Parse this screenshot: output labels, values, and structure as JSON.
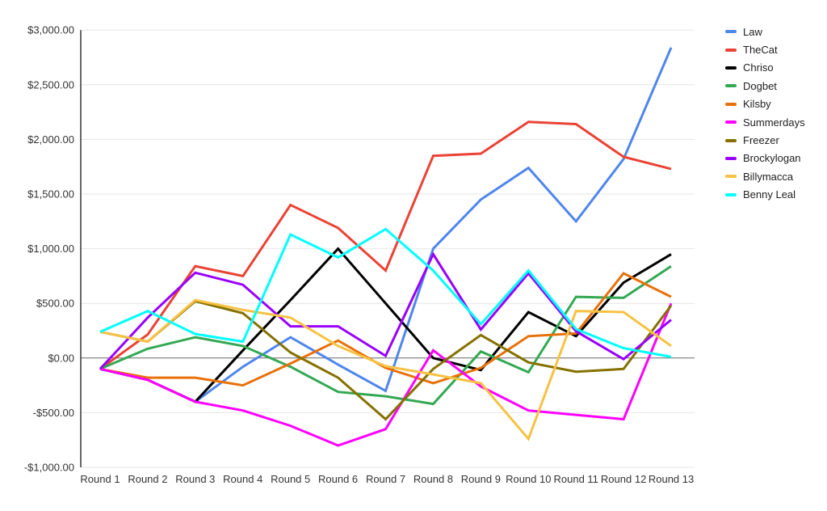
{
  "chart_data": {
    "type": "line",
    "title": "",
    "xlabel": "",
    "ylabel": "",
    "categories": [
      "Round 1",
      "Round 2",
      "Round 3",
      "Round 4",
      "Round 5",
      "Round 6",
      "Round 7",
      "Round 8",
      "Round 9",
      "Round 10",
      "Round 11",
      "Round 12",
      "Round 13"
    ],
    "series": [
      {
        "name": "Law",
        "color": "#4f86ec",
        "values": [
          -100,
          -200,
          -400,
          -80,
          190,
          -60,
          -300,
          1000,
          1450,
          1740,
          1250,
          1820,
          2840
        ]
      },
      {
        "name": "TheCat",
        "color": "#ea4335",
        "values": [
          -100,
          215,
          840,
          750,
          1400,
          1190,
          800,
          1850,
          1870,
          2160,
          2140,
          1840,
          1730
        ]
      },
      {
        "name": "Chriso",
        "color": "#000000",
        "values": [
          -100,
          -200,
          -400,
          70,
          530,
          1000,
          500,
          0,
          -110,
          420,
          200,
          690,
          950
        ]
      },
      {
        "name": "Dogbet",
        "color": "#34a853",
        "values": [
          -100,
          85,
          190,
          110,
          -80,
          -310,
          -350,
          -420,
          60,
          -130,
          560,
          550,
          840
        ]
      },
      {
        "name": "Kilsby",
        "color": "#e8710a",
        "values": [
          -100,
          -180,
          -180,
          -250,
          -50,
          160,
          -90,
          -230,
          -90,
          200,
          225,
          775,
          560
        ]
      },
      {
        "name": "Summerdays",
        "color": "#ff00ff",
        "values": [
          -100,
          -200,
          -400,
          -480,
          -620,
          -800,
          -650,
          70,
          -260,
          -480,
          -520,
          -560,
          500
        ]
      },
      {
        "name": "Freezer",
        "color": "#857100",
        "values": [
          240,
          150,
          520,
          410,
          50,
          -180,
          -560,
          -100,
          210,
          -40,
          -125,
          -100,
          480
        ]
      },
      {
        "name": "Brockylogan",
        "color": "#9900ff",
        "values": [
          -100,
          370,
          780,
          670,
          290,
          290,
          20,
          950,
          260,
          775,
          245,
          -10,
          350
        ]
      },
      {
        "name": "Billymacca",
        "color": "#f6c244",
        "values": [
          240,
          150,
          530,
          440,
          370,
          110,
          -75,
          -150,
          -230,
          -740,
          430,
          420,
          110
        ]
      },
      {
        "name": "Benny Leal",
        "color": "#00ffff",
        "values": [
          240,
          430,
          220,
          150,
          1130,
          920,
          1180,
          800,
          310,
          800,
          265,
          90,
          10
        ]
      }
    ],
    "ylim": [
      -1000,
      3000
    ],
    "y_ticks": [
      {
        "value": 3000,
        "label": "$3,000.00"
      },
      {
        "value": 2500,
        "label": "$2,500.00"
      },
      {
        "value": 2000,
        "label": "$2,000.00"
      },
      {
        "value": 1500,
        "label": "$1,500.00"
      },
      {
        "value": 1000,
        "label": "$1,000.00"
      },
      {
        "value": 500,
        "label": "$500.00"
      },
      {
        "value": 0,
        "label": "$0.00"
      },
      {
        "value": -500,
        "label": "-$500.00"
      },
      {
        "value": -1000,
        "label": "-$1,000.00"
      }
    ],
    "grid": "horizontal",
    "legend_position": "right",
    "colors": {
      "background": "#ffffff",
      "gridline": "#e6e6e6",
      "zero_line": "#666666",
      "axis_line": "#333333",
      "tick_text": "#333333",
      "legend_text": "#212121"
    },
    "line_width": 3
  }
}
